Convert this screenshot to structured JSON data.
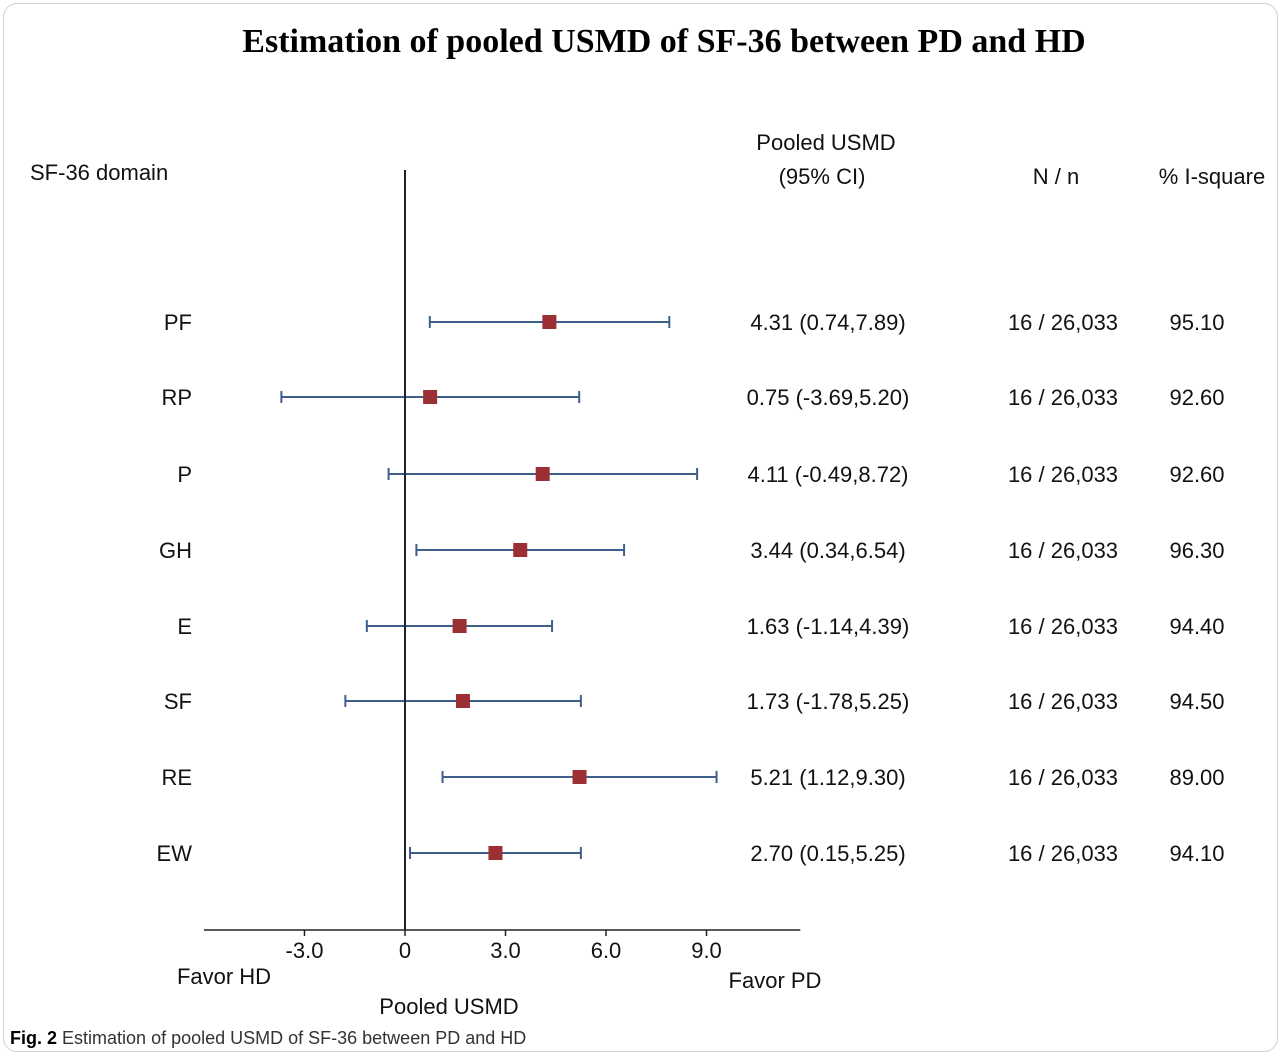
{
  "figure_caption": {
    "label": "Fig. 2",
    "text": "Estimation of pooled USMD of SF-36 between PD and HD"
  },
  "chart_data": {
    "type": "forest",
    "title": "Estimation of pooled USMD of SF-36 between PD and HD",
    "xlabel": "Pooled USMD",
    "x_ticks": [
      -3.0,
      0,
      3.0,
      6.0,
      9.0
    ],
    "x_tick_labels": [
      "-3.0",
      "0",
      "3.0",
      "6.0",
      "9.0"
    ],
    "xlim": [
      -6.0,
      11.8
    ],
    "left_direction_label": "Favor HD",
    "right_direction_label": "Favor PD",
    "column_headers": {
      "domain": "SF-36 domain",
      "estimate_line1": "Pooled USMD",
      "estimate_line2": "(95% CI)",
      "n": "N / n",
      "i_square": "% I-square"
    },
    "rows": [
      {
        "domain": "PF",
        "estimate": 4.31,
        "ci_low": 0.74,
        "ci_high": 7.89,
        "ci_text": "4.31 (0.74,7.89)",
        "n": "16 / 26,033",
        "i_square": "95.10"
      },
      {
        "domain": "RP",
        "estimate": 0.75,
        "ci_low": -3.69,
        "ci_high": 5.2,
        "ci_text": "0.75 (-3.69,5.20)",
        "n": "16 / 26,033",
        "i_square": "92.60"
      },
      {
        "domain": "P",
        "estimate": 4.11,
        "ci_low": -0.49,
        "ci_high": 8.72,
        "ci_text": "4.11 (-0.49,8.72)",
        "n": "16 / 26,033",
        "i_square": "92.60"
      },
      {
        "domain": "GH",
        "estimate": 3.44,
        "ci_low": 0.34,
        "ci_high": 6.54,
        "ci_text": "3.44 (0.34,6.54)",
        "n": "16 / 26,033",
        "i_square": "96.30"
      },
      {
        "domain": "E",
        "estimate": 1.63,
        "ci_low": -1.14,
        "ci_high": 4.39,
        "ci_text": "1.63 (-1.14,4.39)",
        "n": "16 / 26,033",
        "i_square": "94.40"
      },
      {
        "domain": "SF",
        "estimate": 1.73,
        "ci_low": -1.78,
        "ci_high": 5.25,
        "ci_text": "1.73 (-1.78,5.25)",
        "n": "16 / 26,033",
        "i_square": "94.50"
      },
      {
        "domain": "RE",
        "estimate": 5.21,
        "ci_low": 1.12,
        "ci_high": 9.3,
        "ci_text": "5.21 (1.12,9.30)",
        "n": "16 / 26,033",
        "i_square": "89.00"
      },
      {
        "domain": "EW",
        "estimate": 2.7,
        "ci_low": 0.15,
        "ci_high": 5.25,
        "ci_text": "2.70 (0.15,5.25)",
        "n": "16 / 26,033",
        "i_square": "94.10"
      }
    ],
    "colors": {
      "marker": "#9b2f33",
      "ci_line": "#3e5f8a",
      "axis": "#222222"
    }
  }
}
